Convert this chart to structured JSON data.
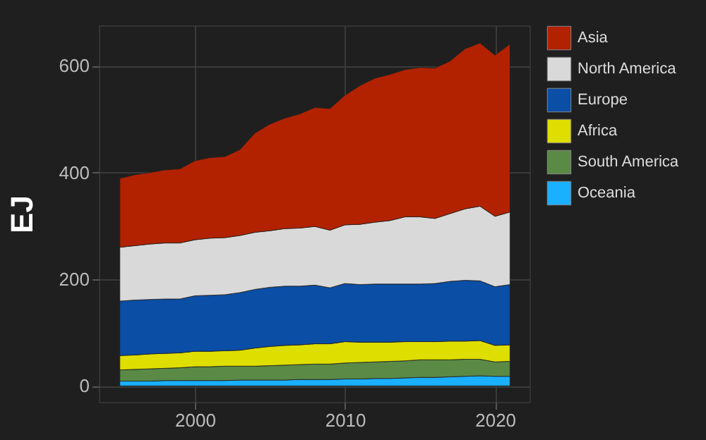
{
  "chart_data": {
    "type": "area",
    "stacked": true,
    "ylabel": "EJ",
    "x": [
      1995,
      1996,
      1997,
      1998,
      1999,
      2000,
      2001,
      2002,
      2003,
      2004,
      2005,
      2006,
      2007,
      2008,
      2009,
      2010,
      2011,
      2012,
      2013,
      2014,
      2015,
      2016,
      2017,
      2018,
      2019,
      2020,
      2021
    ],
    "series": [
      {
        "name": "Oceania",
        "color": "#1ab0ff",
        "values": [
          9,
          9,
          9,
          10,
          10,
          10,
          10,
          10,
          11,
          11,
          11,
          11,
          12,
          12,
          12,
          13,
          13,
          14,
          14,
          15,
          16,
          16,
          17,
          18,
          19,
          18,
          18
        ]
      },
      {
        "name": "South America",
        "color": "#5a8a46",
        "values": [
          21,
          22,
          23,
          23,
          24,
          26,
          26,
          27,
          26,
          26,
          27,
          28,
          28,
          29,
          29,
          30,
          31,
          31,
          32,
          32,
          33,
          33,
          32,
          32,
          31,
          27,
          28
        ]
      },
      {
        "name": "Africa",
        "color": "#dede00",
        "values": [
          27,
          27,
          28,
          28,
          28,
          29,
          29,
          29,
          30,
          34,
          36,
          37,
          37,
          38,
          38,
          40,
          38,
          37,
          36,
          36,
          34,
          34,
          35,
          34,
          35,
          31,
          31
        ]
      },
      {
        "name": "Europe",
        "color": "#0a4ea6",
        "values": [
          102,
          103,
          102,
          102,
          101,
          104,
          105,
          105,
          108,
          110,
          111,
          111,
          110,
          110,
          105,
          109,
          108,
          109,
          109,
          108,
          108,
          109,
          112,
          114,
          112,
          110,
          113
        ]
      },
      {
        "name": "North America",
        "color": "#d9d9d9",
        "values": [
          101,
          102,
          104,
          105,
          105,
          105,
          107,
          107,
          107,
          107,
          106,
          108,
          109,
          110,
          108,
          110,
          113,
          116,
          119,
          126,
          126,
          122,
          127,
          134,
          140,
          132,
          136
        ]
      },
      {
        "name": "Asia",
        "color": "#b22200",
        "values": [
          129,
          133,
          134,
          137,
          139,
          148,
          151,
          152,
          161,
          186,
          200,
          207,
          214,
          223,
          228,
          243,
          260,
          270,
          274,
          276,
          280,
          282,
          286,
          300,
          306,
          302,
          315
        ]
      }
    ],
    "xlim": [
      1993.6,
      2022.3
    ],
    "xticks": [
      2000,
      2010,
      2020
    ],
    "ylim": [
      -30,
      676
    ],
    "yticks": [
      0,
      200,
      400,
      600
    ],
    "grid": true,
    "legend": "right"
  }
}
